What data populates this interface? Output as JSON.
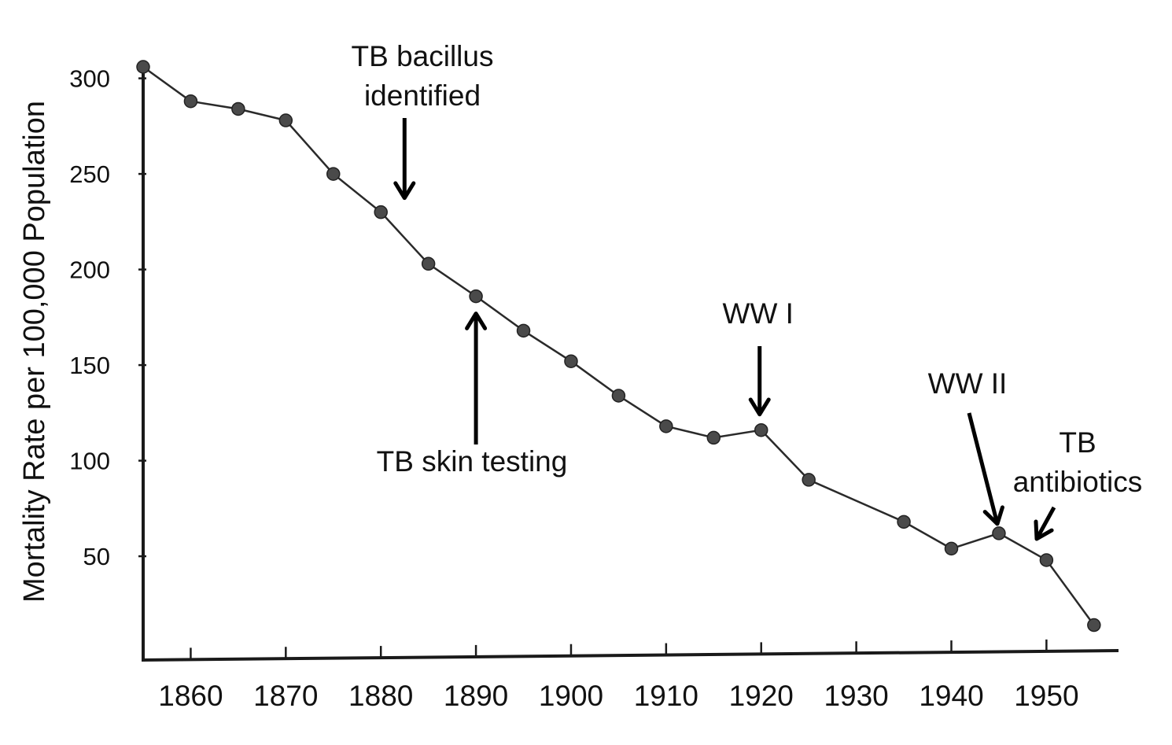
{
  "chart_data": {
    "type": "line",
    "title": "",
    "xlabel": "",
    "ylabel": "Mortality Rate per 100,000 Population",
    "xlim": [
      1855,
      1957
    ],
    "ylim": [
      0,
      300
    ],
    "grid": false,
    "x_ticks": [
      1860,
      1870,
      1880,
      1890,
      1900,
      1910,
      1920,
      1930,
      1940,
      1950
    ],
    "y_ticks": [
      50,
      100,
      150,
      200,
      250,
      300
    ],
    "series": [
      {
        "x": [
          1855,
          1860,
          1865,
          1870,
          1875,
          1880,
          1885,
          1890,
          1895,
          1900,
          1905,
          1910,
          1915,
          1920,
          1925,
          1935,
          1940,
          1945,
          1950,
          1955
        ],
        "y": [
          306,
          288,
          284,
          278,
          250,
          230,
          203,
          186,
          168,
          152,
          134,
          118,
          112,
          116,
          90,
          68,
          54,
          62,
          48,
          14
        ]
      }
    ],
    "annotations": [
      {
        "id": "tb-bacillus",
        "lines": [
          "TB bacillus",
          "identified"
        ],
        "x": 1881,
        "y": 230,
        "direction": "down"
      },
      {
        "id": "tb-skin-testing",
        "lines": [
          "TB skin testing"
        ],
        "x": 1890,
        "y": 186,
        "direction": "up"
      },
      {
        "id": "ww1",
        "lines": [
          "WW I"
        ],
        "x": 1920,
        "y": 116,
        "direction": "down"
      },
      {
        "id": "ww2",
        "lines": [
          "WW II"
        ],
        "x": 1945,
        "y": 62,
        "direction": "down-right"
      },
      {
        "id": "tb-antibiotics",
        "lines": [
          "TB",
          "antibiotics"
        ],
        "x": 1947,
        "y": 57,
        "direction": "down-left"
      }
    ]
  }
}
